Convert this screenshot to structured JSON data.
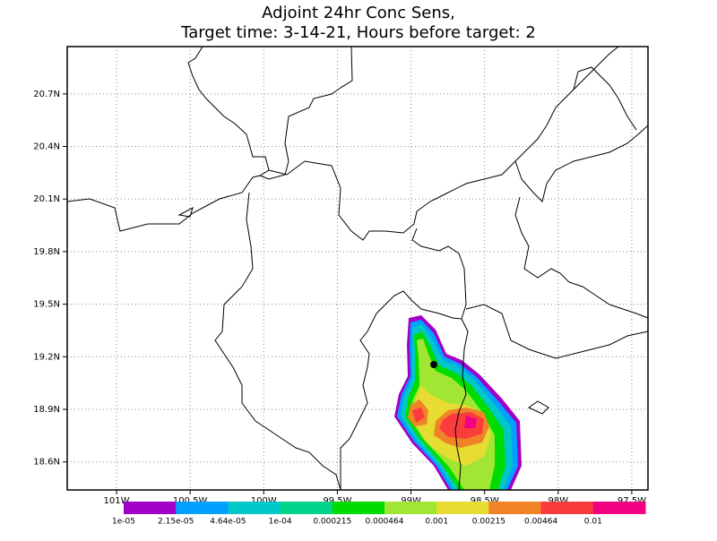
{
  "chart_data": {
    "type": "map",
    "title": [
      "Adjoint 24hr Conc Sens,",
      "Target time: 3-14-21, Hours before target: 2"
    ],
    "xlim": [
      -101.335,
      -97.39
    ],
    "ylim": [
      18.44,
      20.97
    ],
    "xticks": [
      {
        "value": -101,
        "label": "101W"
      },
      {
        "value": -100.5,
        "label": "100.5W"
      },
      {
        "value": -100,
        "label": "100W"
      },
      {
        "value": -99.5,
        "label": "99.5W"
      },
      {
        "value": -99,
        "label": "99W"
      },
      {
        "value": -98.5,
        "label": "98.5W"
      },
      {
        "value": -98,
        "label": "98W"
      },
      {
        "value": -97.5,
        "label": "97.5W"
      }
    ],
    "yticks": [
      {
        "value": 20.7,
        "label": "20.7N"
      },
      {
        "value": 20.4,
        "label": "20.4N"
      },
      {
        "value": 20.1,
        "label": "20.1N"
      },
      {
        "value": 19.8,
        "label": "19.8N"
      },
      {
        "value": 19.5,
        "label": "19.5N"
      },
      {
        "value": 19.2,
        "label": "19.2N"
      },
      {
        "value": 18.9,
        "label": "18.9N"
      },
      {
        "value": 18.6,
        "label": "18.6N"
      }
    ],
    "grid": true,
    "colorbar": {
      "colors": [
        "#a000c8",
        "#00a0ff",
        "#00c8c8",
        "#00d28c",
        "#00dc00",
        "#a0e632",
        "#e6dc32",
        "#f08228",
        "#fa3c3c",
        "#f00082"
      ],
      "labels": [
        "1e-05",
        "2.15e-05",
        "4.64e-05",
        "1e-04",
        "0.000215",
        "0.000464",
        "0.001",
        "0.00215",
        "0.00464",
        "0.01"
      ]
    }
  }
}
